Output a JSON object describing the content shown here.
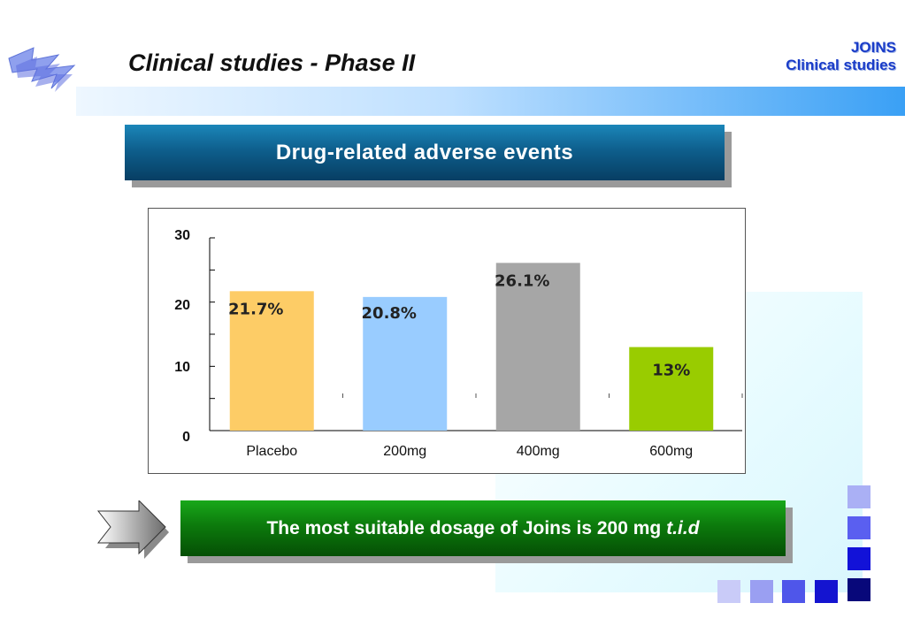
{
  "header": {
    "title": "Clinical studies - Phase II",
    "brand_line1": "JOINS",
    "brand_line2": "Clinical studies"
  },
  "chart_banner": {
    "text": "Drug-related adverse events"
  },
  "conclusion": {
    "text": "The most suitable dosage of Joins is 200 mg",
    "italic": "t.i.d"
  },
  "chart_data": {
    "type": "bar",
    "categories": [
      "Placebo",
      "200mg",
      "400mg",
      "600mg"
    ],
    "values": [
      21.7,
      20.8,
      26.1,
      13
    ],
    "data_labels": [
      "21.7%",
      "20.8%",
      "26.1%",
      "13%"
    ],
    "colors": [
      "#fdcc66",
      "#99ccff",
      "#a6a6a6",
      "#99cc00"
    ],
    "yticks": [
      0,
      10,
      20,
      30
    ],
    "ylim": [
      0,
      30
    ],
    "title": "",
    "xlabel": "",
    "ylabel": ""
  },
  "colors": {
    "blue_banner": "#0e5f8d",
    "green_banner": "#0c7a0c",
    "brand_text": "#1a3cc8"
  },
  "icons": [
    "lightning-logo-icon",
    "arrow-right-icon",
    "decorative-squares"
  ]
}
